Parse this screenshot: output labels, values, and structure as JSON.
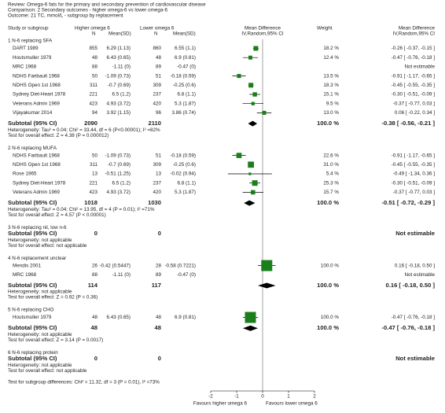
{
  "header": {
    "review": "Review:   Omega-6 fats for the primary and secondary prevention of cardiovascular disease",
    "comparison": "Comparison:   2 Secondary outcomes - higher omega-6 vs lower omega-6",
    "outcome": "Outcome:   21 TC, mmol/L - subgroup by replacement"
  },
  "columns": {
    "study": "Study or subgroup",
    "group1": "Higher omega 6",
    "n1": "N",
    "m1": "Mean(SD)",
    "group2": "Lower omega 6",
    "n2": "N",
    "m2": "Mean(SD)",
    "md": "Mean Difference",
    "md_method": "IV,Random,95% CI",
    "weight": "Weight",
    "md2": "Mean Difference",
    "md_method2": "IV,Random,95% CI"
  },
  "groups": [
    {
      "title": "1 N-6 replacing SFA",
      "rows": [
        {
          "study": "DART 1989",
          "n1": 855,
          "m1": "6.29 (1.13)",
          "n2": 860,
          "m2": "6.55 (1.1)",
          "weight": "18.2 %",
          "w": 18.2,
          "ci": "-0.26 [ -0.37, -0.15 ]",
          "md": -0.26,
          "lo": -0.37,
          "hi": -0.15
        },
        {
          "study": "Houtsmuller 1979",
          "n1": 48,
          "m1": "6.43 (0.65)",
          "n2": 48,
          "m2": "6.9 (0.81)",
          "weight": "12.4 %",
          "w": 12.4,
          "ci": "-0.47 [ -0.76, -0.18 ]",
          "md": -0.47,
          "lo": -0.76,
          "hi": -0.18
        },
        {
          "study": "MRC 1968",
          "n1": 88,
          "m1": "-1.11 (0)",
          "n2": 89,
          "m2": "-0.47 (0)",
          "ci": "Not estimable"
        },
        {
          "study": "NDHS Faribault 1968",
          "n1": 50,
          "m1": "-1.09 (0.73)",
          "n2": 51,
          "m2": "-0.18 (0.59)",
          "weight": "13.5 %",
          "w": 13.5,
          "ci": "-0.91 [ -1.17, -0.65 ]",
          "md": -0.91,
          "lo": -1.17,
          "hi": -0.65
        },
        {
          "study": "NDHS Open 1st 1968",
          "n1": 311,
          "m1": "-0.7 (0.69)",
          "n2": 309,
          "m2": "-0.25 (0.6)",
          "weight": "18.3 %",
          "w": 18.3,
          "ci": "-0.45 [ -0.55, -0.35 ]",
          "md": -0.45,
          "lo": -0.55,
          "hi": -0.35
        },
        {
          "study": "Sydney Diet-Heart 1978",
          "n1": 221,
          "m1": "6.5 (1.2)",
          "n2": 237,
          "m2": "6.8 (1.1)",
          "weight": "15.1 %",
          "w": 15.1,
          "ci": "-0.30 [ -0.51, -0.09 ]",
          "md": -0.3,
          "lo": -0.51,
          "hi": -0.09
        },
        {
          "study": "Veterans Admin 1969",
          "n1": 423,
          "m1": "4.93 (3.72)",
          "n2": 420,
          "m2": "5.3 (1.87)",
          "weight": "9.5 %",
          "w": 9.5,
          "ci": "-0.37 [ -0.77, 0.03 ]",
          "md": -0.37,
          "lo": -0.77,
          "hi": 0.03
        },
        {
          "study": "Vijayakumar 2014",
          "n1": 94,
          "m1": "3.92 (1.15)",
          "n2": 96,
          "m2": "3.86 (0.74)",
          "weight": "13.0 %",
          "w": 13.0,
          "ci": "0.06 [ -0.22, 0.34 ]",
          "md": 0.06,
          "lo": -0.22,
          "hi": 0.34
        }
      ],
      "subtotal": {
        "label": "Subtotal (95% CI)",
        "n1": 2090,
        "n2": 2110,
        "weight": "100.0 %",
        "ci": "-0.38 [ -0.56, -0.21 ]",
        "md": -0.38,
        "lo": -0.56,
        "hi": -0.21
      },
      "heterogeneity": "Heterogeneity: Tau² = 0.04; Chi² = 33.44, df = 6 (P<0.00001); I² =82%",
      "overall": "Test for overall effect: Z = 4.38 (P = 0.000012)"
    },
    {
      "title": "2 N-6 replacing MUFA",
      "rows": [
        {
          "study": "NDHS Faribault 1968",
          "n1": 50,
          "m1": "-1.09 (0.73)",
          "n2": 51,
          "m2": "-0.18 (0.59)",
          "weight": "22.6 %",
          "w": 22.6,
          "ci": "-0.91 [ -1.17, -0.65 ]",
          "md": -0.91,
          "lo": -1.17,
          "hi": -0.65
        },
        {
          "study": "NDHS Open 1st 1968",
          "n1": 311,
          "m1": "-0.7 (0.69)",
          "n2": 309,
          "m2": "-0.25 (0.6)",
          "weight": "31.0 %",
          "w": 31.0,
          "ci": "-0.45 [ -0.55, -0.35 ]",
          "md": -0.45,
          "lo": -0.55,
          "hi": -0.35
        },
        {
          "study": "Rose 1965",
          "n1": 13,
          "m1": "-0.51 (1.25)",
          "n2": 13,
          "m2": "-0.02 (0.94)",
          "weight": "5.4 %",
          "w": 5.4,
          "ci": "-0.49 [ -1.34, 0.36 ]",
          "md": -0.49,
          "lo": -1.34,
          "hi": 0.36
        },
        {
          "study": "Sydney Diet-Heart 1978",
          "n1": 221,
          "m1": "6.5 (1.2)",
          "n2": 237,
          "m2": "6.8 (1.1)",
          "weight": "25.3 %",
          "w": 25.3,
          "ci": "-0.30 [ -0.51, -0.09 ]",
          "md": -0.3,
          "lo": -0.51,
          "hi": -0.09
        },
        {
          "study": "Veterans Admin 1969",
          "n1": 423,
          "m1": "4.93 (3.72)",
          "n2": 420,
          "m2": "5.3 (1.87)",
          "weight": "15.7 %",
          "w": 15.7,
          "ci": "-0.37 [ -0.77, 0.03 ]",
          "md": -0.37,
          "lo": -0.77,
          "hi": 0.03
        }
      ],
      "subtotal": {
        "label": "Subtotal (95% CI)",
        "n1": 1018,
        "n2": 1030,
        "weight": "100.0 %",
        "ci": "-0.51 [ -0.72, -0.29 ]",
        "md": -0.51,
        "lo": -0.72,
        "hi": -0.29
      },
      "heterogeneity": "Heterogeneity: Tau² = 0.04; Chi² = 13.95, df = 4 (P = 0.01); I² =71%",
      "overall": "Test for overall effect: Z = 4.57 (P < 0.00001)"
    },
    {
      "title": "3 N-6 replacing nil, low n-6",
      "rows": [],
      "subtotal": {
        "label": "Subtotal (95% CI)",
        "n1": 0,
        "n2": 0,
        "ci": "Not estimable"
      },
      "heterogeneity": "Heterogeneity: not applicable",
      "overall": "Test for overall effect: not applicable"
    },
    {
      "title": "4 N-6 replacement unclear",
      "rows": [
        {
          "study": "Mendis 2001",
          "n1": 26,
          "m1": "-0.42 (0.5447)",
          "n2": 28,
          "m2": "-0.58 (0.7221)",
          "weight": "100.0 %",
          "w": 100.0,
          "ci": "0.16 [ -0.18, 0.50 ]",
          "md": 0.16,
          "lo": -0.18,
          "hi": 0.5
        },
        {
          "study": "MRC 1968",
          "n1": 88,
          "m1": "-1.11 (0)",
          "n2": 89,
          "m2": "-0.47 (0)",
          "ci": "Not estimable"
        }
      ],
      "subtotal": {
        "label": "Subtotal (95% CI)",
        "n1": 114,
        "n2": 117,
        "weight": "100.0 %",
        "ci": "0.16 [ -0.18, 0.50 ]",
        "md": 0.16,
        "lo": -0.18,
        "hi": 0.5
      },
      "heterogeneity": "Heterogeneity: not applicable",
      "overall": "Test for overall effect: Z = 0.92 (P = 0.36)"
    },
    {
      "title": "5 N-6 replacing CHO",
      "rows": [
        {
          "study": "Houtsmuller 1979",
          "n1": 48,
          "m1": "6.43 (0.65)",
          "n2": 48,
          "m2": "6.9 (0.81)",
          "weight": "100.0 %",
          "w": 100.0,
          "ci": "-0.47 [ -0.76, -0.18 ]",
          "md": -0.47,
          "lo": -0.76,
          "hi": -0.18
        }
      ],
      "subtotal": {
        "label": "Subtotal (95% CI)",
        "n1": 48,
        "n2": 48,
        "weight": "100.0 %",
        "ci": "-0.47 [ -0.76, -0.18 ]",
        "md": -0.47,
        "lo": -0.76,
        "hi": -0.18
      },
      "heterogeneity": "Heterogeneity: not applicable",
      "overall": "Test for overall effect: Z = 3.14 (P = 0.0017)"
    },
    {
      "title": "6 N-6 replacing protein",
      "rows": [],
      "subtotal": {
        "label": "Subtotal (95% CI)",
        "n1": 0,
        "n2": 0,
        "ci": "Not estimable"
      },
      "heterogeneity": "Heterogeneity: not applicable",
      "overall": "Test for overall effect: not applicable"
    }
  ],
  "subgroup_test": "Test for subgroup differences: Chi² = 11.32, df = 3 (P = 0.01), I² =73%",
  "axis": {
    "xlim": [
      -2,
      2
    ],
    "xticks": [
      -2,
      -1,
      0,
      1,
      2
    ],
    "left_label": "Favours higher omega 6",
    "right_label": "Favours lower omega 6"
  }
}
